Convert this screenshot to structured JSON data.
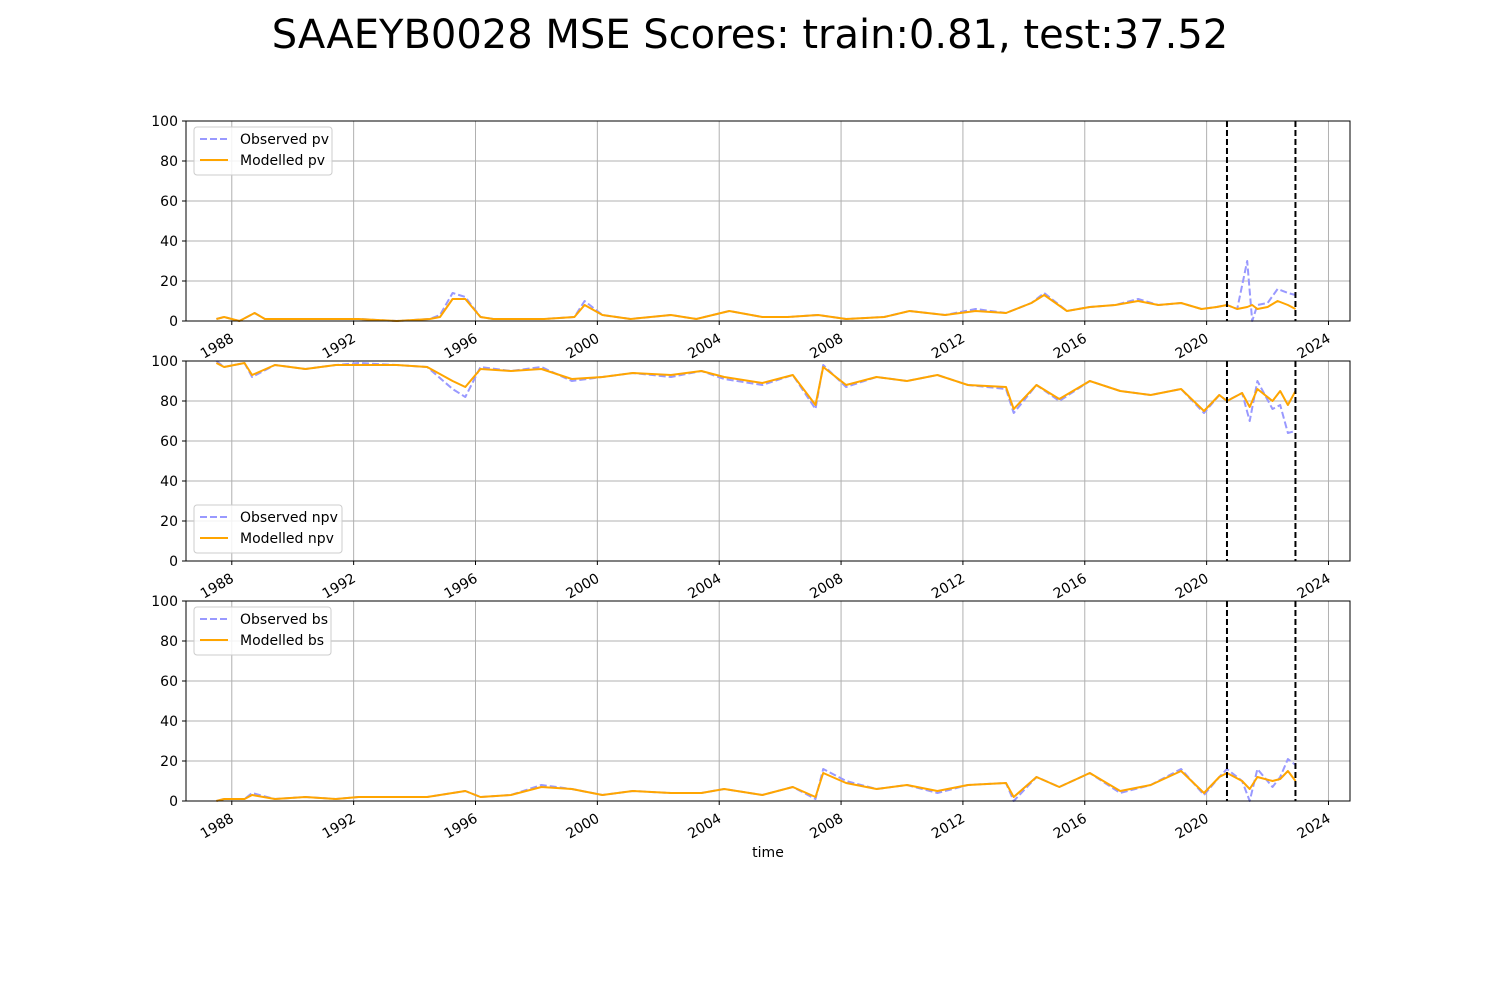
{
  "title": "SAAEYB0028 MSE Scores: train:0.81, test:37.52",
  "colors": {
    "observed": "#9999ff",
    "modelled": "#ffa500",
    "grid": "#b0b0b0",
    "vline": "#000000"
  },
  "chart_data": [
    {
      "type": "line",
      "xlabel": "",
      "ylabel": "",
      "xlim": [
        "1986-07-01",
        "2024-09-15"
      ],
      "ylim": [
        0,
        100
      ],
      "yticks": [
        0,
        20,
        40,
        60,
        80,
        100
      ],
      "xticks": [
        "1988",
        "1992",
        "1996",
        "2000",
        "2004",
        "2008",
        "2012",
        "2016",
        "2020",
        "2024"
      ],
      "grid": true,
      "legend_position": "top-left",
      "vlines": [
        "2020-09-01",
        "2022-12-01"
      ],
      "series": [
        {
          "name": "Observed pv",
          "style": "dashed",
          "x": [
            "1987-07",
            "1987-10",
            "1988-04",
            "1988-10",
            "1989-02",
            "1990-01",
            "1991-06",
            "1992-03",
            "1993-06",
            "1994-07",
            "1994-11",
            "1995-04",
            "1995-09",
            "1996-03",
            "1996-08",
            "1997-06",
            "1998-04",
            "1999-04",
            "1999-08",
            "2000-03",
            "2001-02",
            "2002-06",
            "2003-04",
            "2004-05",
            "2005-06",
            "2006-04",
            "2007-04",
            "2008-03",
            "2009-06",
            "2010-04",
            "2011-06",
            "2012-06",
            "2013-06",
            "2014-04",
            "2014-09",
            "2015-06",
            "2016-03",
            "2017-01",
            "2017-10",
            "2018-06",
            "2019-03",
            "2019-11",
            "2020-05",
            "2020-09",
            "2021-01",
            "2021-05",
            "2021-07",
            "2021-09",
            "2022-01",
            "2022-05",
            "2022-09",
            "2022-12"
          ],
          "values": [
            1,
            2,
            0,
            4,
            1,
            1,
            1,
            1,
            0,
            1,
            3,
            14,
            12,
            2,
            1,
            1,
            1,
            2,
            10,
            3,
            1,
            3,
            1,
            5,
            2,
            2,
            3,
            1,
            2,
            5,
            3,
            6,
            4,
            9,
            14,
            5,
            7,
            8,
            11,
            8,
            9,
            6,
            7,
            8,
            6,
            30,
            0,
            8,
            9,
            16,
            14,
            13
          ]
        },
        {
          "name": "Modelled pv",
          "style": "solid",
          "x": [
            "1987-07",
            "1987-10",
            "1988-04",
            "1988-10",
            "1989-02",
            "1990-01",
            "1991-06",
            "1992-03",
            "1993-06",
            "1994-07",
            "1994-11",
            "1995-04",
            "1995-09",
            "1996-03",
            "1996-08",
            "1997-06",
            "1998-04",
            "1999-04",
            "1999-08",
            "2000-03",
            "2001-02",
            "2002-06",
            "2003-04",
            "2004-05",
            "2005-06",
            "2006-04",
            "2007-04",
            "2008-03",
            "2009-06",
            "2010-04",
            "2011-06",
            "2012-06",
            "2013-06",
            "2014-04",
            "2014-09",
            "2015-06",
            "2016-03",
            "2017-01",
            "2017-10",
            "2018-06",
            "2019-03",
            "2019-11",
            "2020-05",
            "2020-09",
            "2021-01",
            "2021-05",
            "2021-07",
            "2021-09",
            "2022-01",
            "2022-05",
            "2022-09",
            "2022-12"
          ],
          "values": [
            1,
            2,
            0,
            4,
            1,
            1,
            1,
            1,
            0,
            1,
            2,
            11,
            11,
            2,
            1,
            1,
            1,
            2,
            8,
            3,
            1,
            3,
            1,
            5,
            2,
            2,
            3,
            1,
            2,
            5,
            3,
            5,
            4,
            9,
            13,
            5,
            7,
            8,
            10,
            8,
            9,
            6,
            7,
            8,
            6,
            7,
            8,
            6,
            7,
            10,
            8,
            6
          ]
        }
      ]
    },
    {
      "type": "line",
      "xlabel": "",
      "ylabel": "",
      "xlim": [
        "1986-07-01",
        "2024-09-15"
      ],
      "ylim": [
        0,
        100
      ],
      "yticks": [
        0,
        20,
        40,
        60,
        80,
        100
      ],
      "xticks": [
        "1988",
        "1992",
        "1996",
        "2000",
        "2004",
        "2008",
        "2012",
        "2016",
        "2020",
        "2024"
      ],
      "grid": true,
      "legend_position": "bottom-left",
      "vlines": [
        "2020-09-01",
        "2022-12-01"
      ],
      "series": [
        {
          "name": "Observed npv",
          "style": "dashed",
          "x": [
            "1987-07",
            "1987-10",
            "1988-06",
            "1988-09",
            "1989-06",
            "1990-06",
            "1991-06",
            "1992-03",
            "1993-06",
            "1994-06",
            "1995-04",
            "1995-09",
            "1996-03",
            "1997-03",
            "1998-03",
            "1999-03",
            "2000-03",
            "2001-03",
            "2002-06",
            "2003-06",
            "2004-03",
            "2005-06",
            "2006-06",
            "2007-03",
            "2007-06",
            "2008-03",
            "2009-03",
            "2010-03",
            "2011-03",
            "2012-03",
            "2013-06",
            "2013-09",
            "2014-06",
            "2015-03",
            "2016-03",
            "2017-03",
            "2018-03",
            "2019-03",
            "2019-12",
            "2020-06",
            "2020-09",
            "2021-03",
            "2021-06",
            "2021-09",
            "2022-03",
            "2022-06",
            "2022-09",
            "2022-12"
          ],
          "values": [
            100,
            97,
            99,
            92,
            98,
            96,
            98,
            99,
            98,
            97,
            86,
            82,
            97,
            95,
            97,
            90,
            92,
            94,
            92,
            95,
            91,
            88,
            93,
            76,
            98,
            87,
            92,
            90,
            93,
            88,
            86,
            74,
            88,
            80,
            90,
            85,
            83,
            86,
            74,
            83,
            80,
            84,
            70,
            90,
            76,
            78,
            64,
            65
          ]
        },
        {
          "name": "Modelled npv",
          "style": "solid",
          "x": [
            "1987-07",
            "1987-10",
            "1988-06",
            "1988-09",
            "1989-06",
            "1990-06",
            "1991-06",
            "1992-03",
            "1993-06",
            "1994-06",
            "1995-04",
            "1995-09",
            "1996-03",
            "1997-03",
            "1998-03",
            "1999-03",
            "2000-03",
            "2001-03",
            "2002-06",
            "2003-06",
            "2004-03",
            "2005-06",
            "2006-06",
            "2007-03",
            "2007-06",
            "2008-03",
            "2009-03",
            "2010-03",
            "2011-03",
            "2012-03",
            "2013-06",
            "2013-09",
            "2014-06",
            "2015-03",
            "2016-03",
            "2017-03",
            "2018-03",
            "2019-03",
            "2019-12",
            "2020-06",
            "2020-09",
            "2021-03",
            "2021-06",
            "2021-09",
            "2022-03",
            "2022-06",
            "2022-09",
            "2022-12"
          ],
          "values": [
            99,
            97,
            99,
            93,
            98,
            96,
            98,
            98,
            98,
            97,
            90,
            87,
            96,
            95,
            96,
            91,
            92,
            94,
            93,
            95,
            92,
            89,
            93,
            78,
            97,
            88,
            92,
            90,
            93,
            88,
            87,
            76,
            88,
            81,
            90,
            85,
            83,
            86,
            75,
            83,
            80,
            84,
            77,
            86,
            80,
            85,
            78,
            85
          ]
        }
      ]
    },
    {
      "type": "line",
      "xlabel": "time",
      "ylabel": "",
      "xlim": [
        "1986-07-01",
        "2024-09-15"
      ],
      "ylim": [
        0,
        100
      ],
      "yticks": [
        0,
        20,
        40,
        60,
        80,
        100
      ],
      "xticks": [
        "1988",
        "1992",
        "1996",
        "2000",
        "2004",
        "2008",
        "2012",
        "2016",
        "2020",
        "2024"
      ],
      "grid": true,
      "legend_position": "top-left",
      "vlines": [
        "2020-09-01",
        "2022-12-01"
      ],
      "series": [
        {
          "name": "Observed bs",
          "style": "dashed",
          "x": [
            "1987-07",
            "1987-10",
            "1988-06",
            "1988-09",
            "1989-06",
            "1990-06",
            "1991-06",
            "1992-03",
            "1993-06",
            "1994-06",
            "1995-04",
            "1995-09",
            "1996-03",
            "1997-03",
            "1998-03",
            "1999-03",
            "2000-03",
            "2001-03",
            "2002-06",
            "2003-06",
            "2004-03",
            "2005-06",
            "2006-06",
            "2007-03",
            "2007-06",
            "2008-03",
            "2009-03",
            "2010-03",
            "2011-03",
            "2012-03",
            "2013-06",
            "2013-09",
            "2014-06",
            "2015-03",
            "2016-03",
            "2017-03",
            "2018-03",
            "2019-03",
            "2019-12",
            "2020-06",
            "2020-09",
            "2021-03",
            "2021-06",
            "2021-09",
            "2022-03",
            "2022-06",
            "2022-09",
            "2022-12"
          ],
          "values": [
            0,
            1,
            1,
            4,
            1,
            2,
            1,
            2,
            2,
            2,
            4,
            5,
            2,
            3,
            8,
            6,
            3,
            5,
            4,
            4,
            6,
            3,
            7,
            1,
            16,
            10,
            6,
            8,
            4,
            8,
            9,
            0,
            12,
            7,
            14,
            4,
            8,
            16,
            3,
            12,
            16,
            10,
            0,
            16,
            7,
            12,
            21,
            18
          ]
        },
        {
          "name": "Modelled bs",
          "style": "solid",
          "x": [
            "1987-07",
            "1987-10",
            "1988-06",
            "1988-09",
            "1989-06",
            "1990-06",
            "1991-06",
            "1992-03",
            "1993-06",
            "1994-06",
            "1995-04",
            "1995-09",
            "1996-03",
            "1997-03",
            "1998-03",
            "1999-03",
            "2000-03",
            "2001-03",
            "2002-06",
            "2003-06",
            "2004-03",
            "2005-06",
            "2006-06",
            "2007-03",
            "2007-06",
            "2008-03",
            "2009-03",
            "2010-03",
            "2011-03",
            "2012-03",
            "2013-06",
            "2013-09",
            "2014-06",
            "2015-03",
            "2016-03",
            "2017-03",
            "2018-03",
            "2019-03",
            "2019-12",
            "2020-06",
            "2020-09",
            "2021-03",
            "2021-06",
            "2021-09",
            "2022-03",
            "2022-06",
            "2022-09",
            "2022-12"
          ],
          "values": [
            0,
            1,
            1,
            3,
            1,
            2,
            1,
            2,
            2,
            2,
            4,
            5,
            2,
            3,
            7,
            6,
            3,
            5,
            4,
            4,
            6,
            3,
            7,
            2,
            14,
            9,
            6,
            8,
            5,
            8,
            9,
            2,
            12,
            7,
            14,
            5,
            8,
            15,
            4,
            12,
            14,
            10,
            6,
            12,
            10,
            11,
            15,
            10
          ]
        }
      ]
    }
  ]
}
